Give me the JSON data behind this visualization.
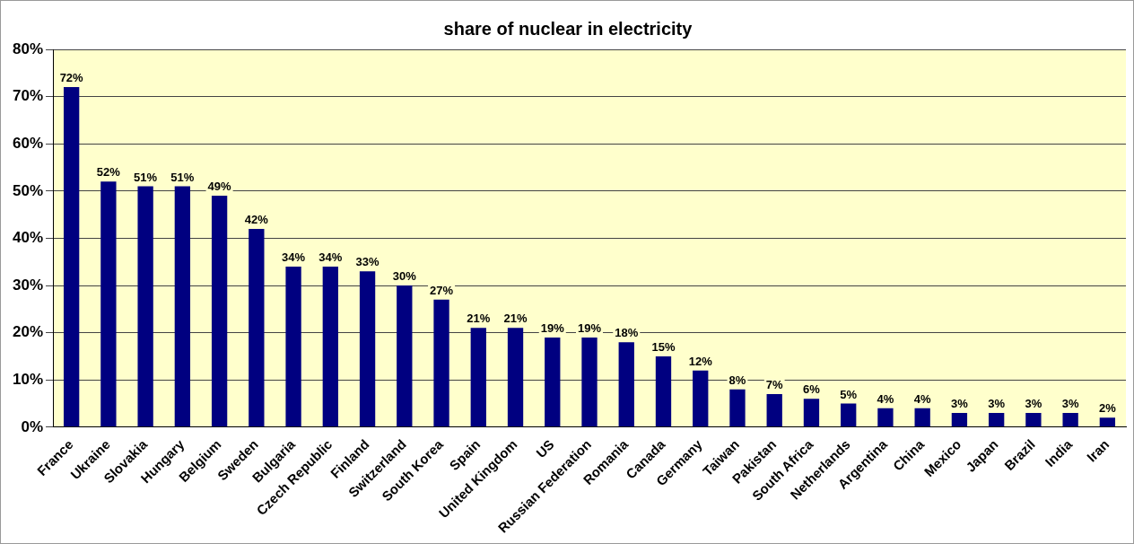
{
  "chart_data": {
    "type": "bar",
    "title": "share of nuclear in electricity",
    "categories": [
      "France",
      "Ukraine",
      "Slovakia",
      "Hungary",
      "Belgium",
      "Sweden",
      "Bulgaria",
      "Czech Republic",
      "Finland",
      "Switzerland",
      "South Korea",
      "Spain",
      "United Kingdom",
      "US",
      "Russian Federation",
      "Romania",
      "Canada",
      "Germany",
      "Taiwan",
      "Pakistan",
      "South Africa",
      "Netherlands",
      "Argentina",
      "China",
      "Mexico",
      "Japan",
      "Brazil",
      "India",
      "Iran"
    ],
    "values": [
      72,
      52,
      51,
      51,
      49,
      42,
      34,
      34,
      33,
      30,
      27,
      21,
      21,
      19,
      19,
      18,
      15,
      12,
      8,
      7,
      6,
      5,
      4,
      4,
      3,
      3,
      3,
      3,
      2
    ],
    "value_labels": [
      "72%",
      "52%",
      "51%",
      "51%",
      "49%",
      "42%",
      "34%",
      "34%",
      "33%",
      "30%",
      "27%",
      "21%",
      "21%",
      "19%",
      "19%",
      "18%",
      "15%",
      "12%",
      "8%",
      "7%",
      "6%",
      "5%",
      "4%",
      "4%",
      "3%",
      "3%",
      "3%",
      "3%",
      "2%"
    ],
    "color": "#000080",
    "ylim": [
      0,
      80
    ],
    "yticks": [
      {
        "value": 0,
        "label": "0%"
      },
      {
        "value": 10,
        "label": "10%"
      },
      {
        "value": 20,
        "label": "20%"
      },
      {
        "value": 30,
        "label": "30%"
      },
      {
        "value": 40,
        "label": "40%"
      },
      {
        "value": 50,
        "label": "50%"
      },
      {
        "value": 60,
        "label": "60%"
      },
      {
        "value": 70,
        "label": "70%"
      },
      {
        "value": 80,
        "label": "80%"
      }
    ],
    "grid": "y",
    "legend": false
  }
}
